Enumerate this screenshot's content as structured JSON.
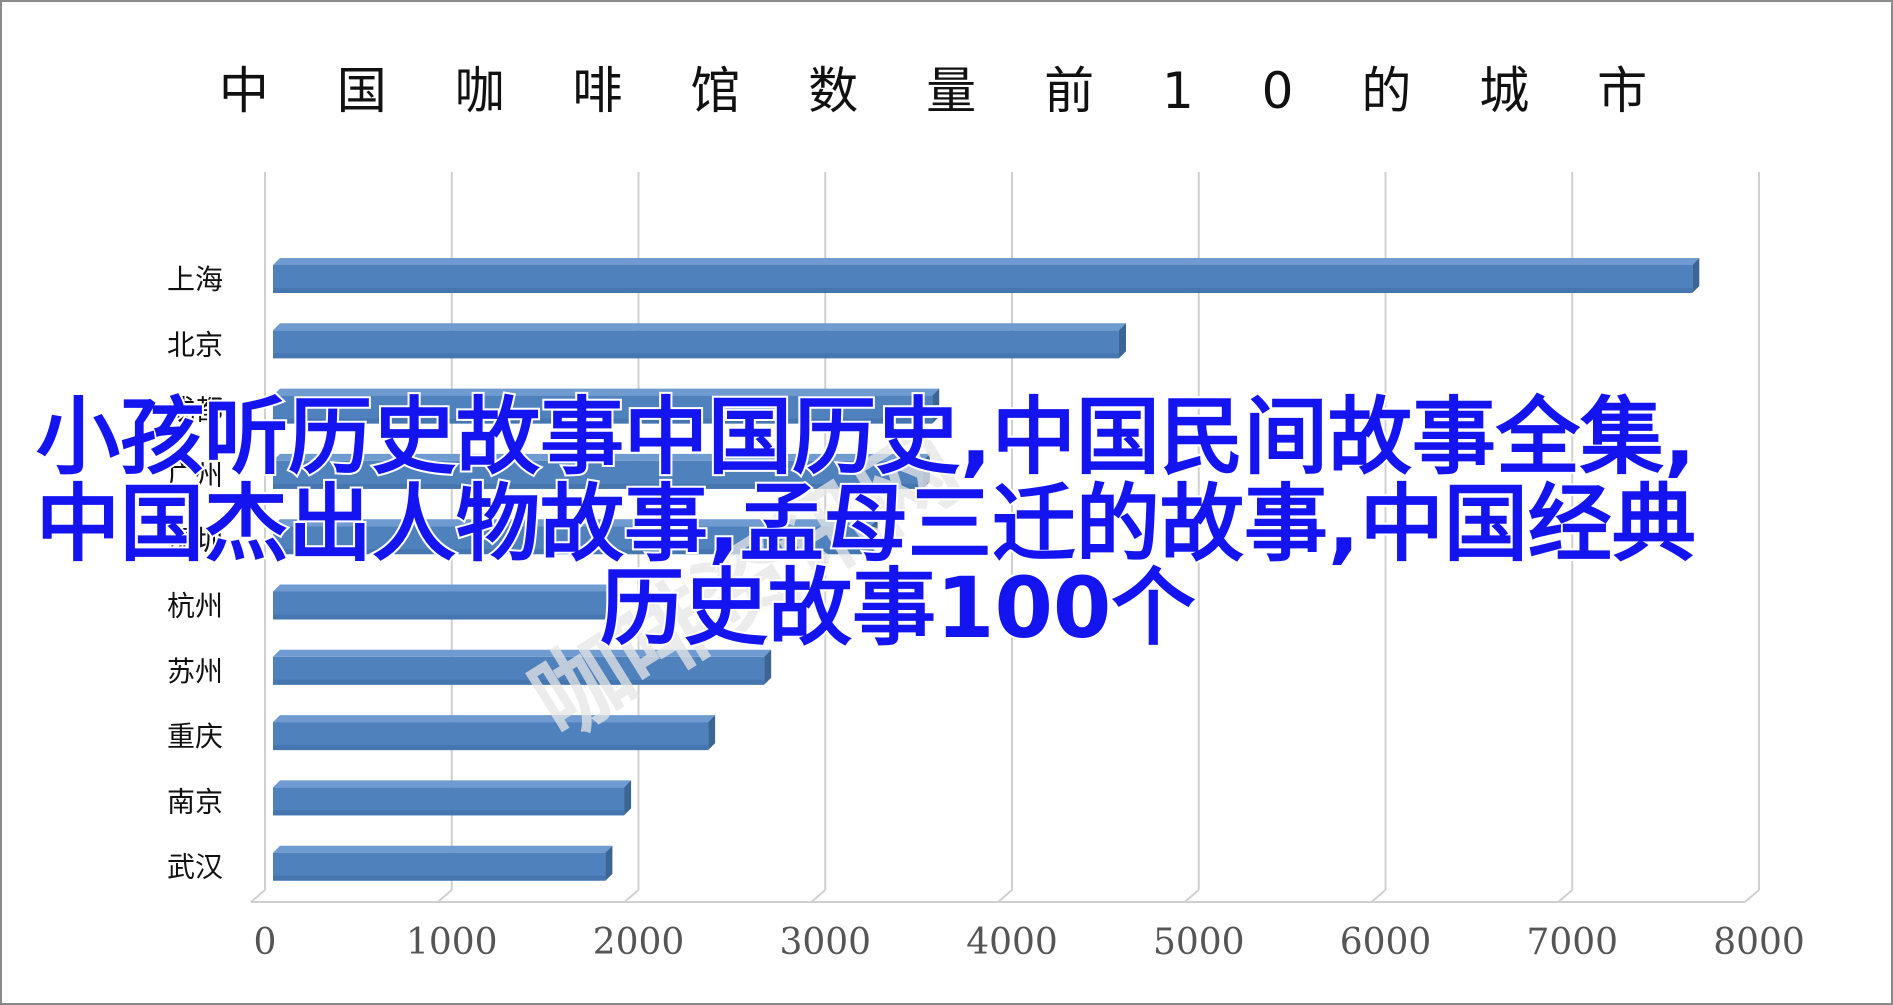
{
  "chart_data": {
    "type": "bar",
    "orientation": "horizontal",
    "title": "中 国 咖 啡 馆 数 量 前 1 0   的 城 市",
    "categories": [
      "上海",
      "北京",
      "成都",
      "广州",
      "深圳",
      "杭州",
      "苏州",
      "重庆",
      "南京",
      "武汉"
    ],
    "values": [
      7600,
      4530,
      3530,
      3480,
      3200,
      1800,
      2630,
      2330,
      1880,
      1780
    ],
    "xticks": [
      "0",
      "1000",
      "2000",
      "3000",
      "4000",
      "5000",
      "6000",
      "7000",
      "8000"
    ],
    "xlim": [
      0,
      8000
    ],
    "xlabel": "",
    "ylabel": "",
    "grid": "vertical",
    "bar_color": "#4f81bd"
  },
  "overlay": {
    "lines": [
      "小孩听历史故事中国历史,中国民间故事全集,",
      "中国杰出人物故事,孟母三迁的故事,中国经典",
      "历史故事100个"
    ],
    "color": "#1414f0"
  },
  "watermark": {
    "text": "咖啡资讯网"
  }
}
